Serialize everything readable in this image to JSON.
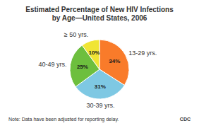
{
  "chart_data": {
    "type": "pie",
    "title": "Estimated Percentage of New HIV Infections",
    "subtitle": "by Age—United States, 2006",
    "categories": [
      "13-29 yrs.",
      "30-39 yrs.",
      "40-49 yrs.",
      "≥ 50 yrs."
    ],
    "values": [
      34,
      31,
      25,
      10
    ],
    "value_labels": [
      "34%",
      "31%",
      "25%",
      "10%"
    ],
    "colors": [
      "#F97B2A",
      "#7EC8E3",
      "#6DBF3E",
      "#F0E534"
    ],
    "data_labels": true,
    "annotations": [
      "Note: Data have been adjusted for reporting delay.",
      "CDC"
    ]
  }
}
